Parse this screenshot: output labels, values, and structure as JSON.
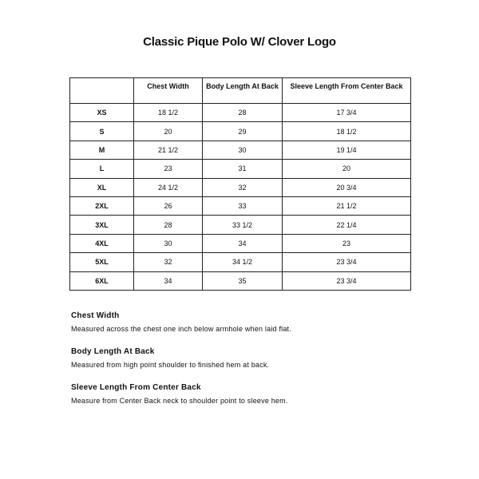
{
  "title": "Classic Pique Polo W/ Clover Logo",
  "table": {
    "headers": [
      "",
      "Chest Width",
      "Body Length At Back",
      "Sleeve Length From Center Back"
    ],
    "rows": [
      [
        "XS",
        "18 1/2",
        "28",
        "17 3/4"
      ],
      [
        "S",
        "20",
        "29",
        "18 1/2"
      ],
      [
        "M",
        "21 1/2",
        "30",
        "19 1/4"
      ],
      [
        "L",
        "23",
        "31",
        "20"
      ],
      [
        "XL",
        "24 1/2",
        "32",
        "20 3/4"
      ],
      [
        "2XL",
        "26",
        "33",
        "21 1/2"
      ],
      [
        "3XL",
        "28",
        "33 1/2",
        "22 1/4"
      ],
      [
        "4XL",
        "30",
        "34",
        "23"
      ],
      [
        "5XL",
        "32",
        "34 1/2",
        "23 3/4"
      ],
      [
        "6XL",
        "34",
        "35",
        "23 3/4"
      ]
    ]
  },
  "notes": [
    {
      "heading": "Chest Width",
      "text": "Measured across the chest one inch below armhole when laid flat."
    },
    {
      "heading": "Body Length At Back",
      "text": "Measured from high point shoulder to finished hem at back."
    },
    {
      "heading": "Sleeve Length From Center Back",
      "text": "Measure from Center Back neck to shoulder point to sleeve hem."
    }
  ]
}
